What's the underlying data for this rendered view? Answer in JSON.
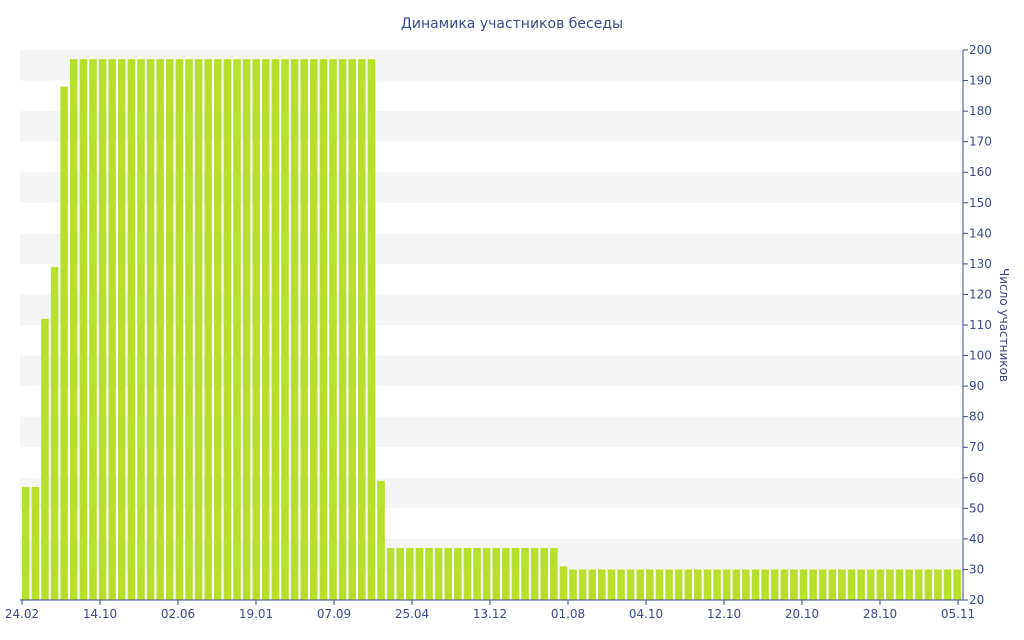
{
  "chart_data": {
    "type": "bar",
    "title": "Динамика участников беседы",
    "ylabel": "Число участников",
    "xlabel": "",
    "ylim": [
      20,
      200
    ],
    "y_ticks": [
      20,
      30,
      40,
      50,
      60,
      70,
      80,
      90,
      100,
      110,
      120,
      130,
      140,
      150,
      160,
      170,
      180,
      190,
      200
    ],
    "x_tick_labels": [
      "24.02",
      "14.10",
      "02.06",
      "19.01",
      "07.09",
      "25.04",
      "13.12",
      "01.08",
      "04.10",
      "12.10",
      "20.10",
      "28.10",
      "05.11"
    ],
    "bar_color": "#b6e02a",
    "band_color": "#f5f5f5",
    "grid": true,
    "values": [
      57,
      57,
      112,
      129,
      188,
      197,
      197,
      197,
      197,
      197,
      197,
      197,
      197,
      197,
      197,
      197,
      197,
      197,
      197,
      197,
      197,
      197,
      197,
      197,
      197,
      197,
      197,
      197,
      197,
      197,
      197,
      197,
      197,
      197,
      197,
      197,
      197,
      59,
      37,
      37,
      37,
      37,
      37,
      37,
      37,
      37,
      37,
      37,
      37,
      37,
      37,
      37,
      37,
      37,
      37,
      37,
      31,
      30,
      30,
      30,
      30,
      30,
      30,
      30,
      30,
      30,
      30,
      30,
      30,
      30,
      30,
      30,
      30,
      30,
      30,
      30,
      30,
      30,
      30,
      30,
      30,
      30,
      30,
      30,
      30,
      30,
      30,
      30,
      30,
      30,
      30,
      30,
      30,
      30,
      30,
      30,
      30,
      30
    ]
  }
}
